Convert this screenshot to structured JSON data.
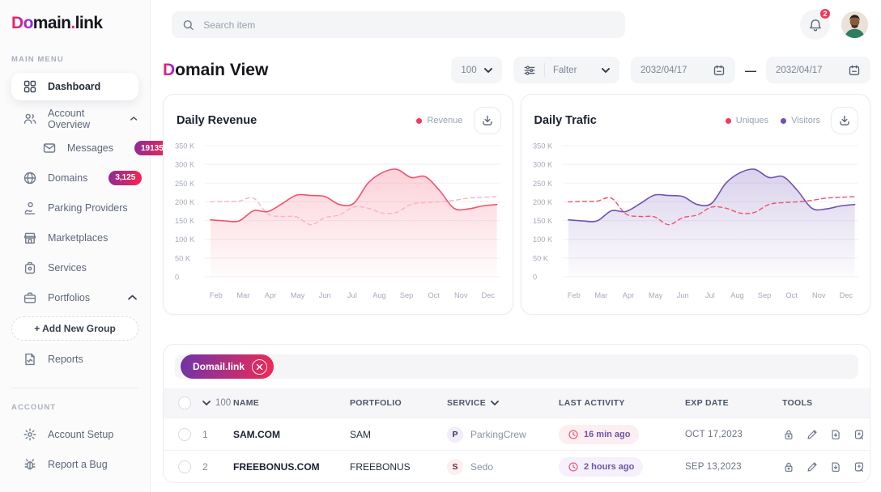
{
  "brand": {
    "logo_gradient": "Do",
    "logo_main": "main",
    "logo_dot": ".",
    "logo_tld": "link"
  },
  "sidebar": {
    "main_menu_label": "MAIN MENU",
    "account_label": "ACCOUNT",
    "dashboard": "Dashboard",
    "account_overview": "Account Overview",
    "messages": "Messages",
    "messages_badge": "19135",
    "domains": "Domains",
    "domains_badge": "3,125",
    "parking_providers": "Parking Providers",
    "marketplaces": "Marketplaces",
    "services": "Services",
    "portfolios": "Portfolios",
    "add_new_group": "+  Add New Group",
    "reports": "Reports",
    "account_setup": "Account Setup",
    "report_a_bug": "Report a Bug"
  },
  "topbar": {
    "search_placeholder": "Search item",
    "notification_count": "2"
  },
  "page": {
    "title_lead": "D",
    "title_rest": "omain View"
  },
  "controls": {
    "page_size": "100",
    "filter_label": "Falter",
    "date_from": "2032/04/17",
    "date_separator": "—",
    "date_to": "2032/04/17"
  },
  "chart_data": [
    {
      "type": "area",
      "title": "Daily Revenue",
      "legend": [
        {
          "label": "Revenue",
          "color": "#f4385e"
        }
      ],
      "categories": [
        "Feb",
        "Mar",
        "Apr",
        "May",
        "Jun",
        "Jul",
        "Aug",
        "Sep",
        "Oct",
        "Nov",
        "Dec"
      ],
      "ytick_labels": [
        "350 K",
        "300 K",
        "250 K",
        "200 K",
        "150 K",
        "100 K",
        "50 K",
        "0"
      ],
      "ylim": [
        0,
        350
      ],
      "unit": "K",
      "grid": true,
      "series": [
        {
          "name": "Revenue",
          "style": "solid",
          "color": "#f4506c",
          "fill": "#f4506c",
          "values": [
            152,
            149,
            149,
            176,
            174,
            195,
            218,
            217,
            214,
            193,
            196,
            250,
            278,
            287,
            265,
            267,
            230,
            183,
            181,
            189,
            193
          ]
        },
        {
          "name": "Revenue (unlabeled dashed)",
          "style": "dashed",
          "color": "#f8b4c2",
          "fill": null,
          "values": [
            200,
            201,
            202,
            210,
            168,
            161,
            160,
            139,
            158,
            165,
            186,
            183,
            170,
            172,
            193,
            198,
            200,
            204,
            210,
            212,
            214
          ]
        }
      ]
    },
    {
      "type": "area",
      "title": "Daily Trafic",
      "legend": [
        {
          "label": "Uniques",
          "color": "#f4385e"
        },
        {
          "label": "Visitors",
          "color": "#7050b4"
        }
      ],
      "categories": [
        "Feb",
        "Mar",
        "Apr",
        "May",
        "Jun",
        "Jul",
        "Aug",
        "Sep",
        "Oct",
        "Nov",
        "Dec"
      ],
      "ytick_labels": [
        "350 K",
        "300 K",
        "250 K",
        "200 K",
        "150 K",
        "100 K",
        "50 K",
        "0"
      ],
      "ylim": [
        0,
        350
      ],
      "unit": "K",
      "grid": true,
      "series": [
        {
          "name": "Visitors",
          "style": "solid",
          "color": "#7050b4",
          "fill": "#7050b4",
          "values": [
            152,
            149,
            149,
            176,
            174,
            195,
            218,
            217,
            214,
            193,
            196,
            250,
            278,
            287,
            265,
            267,
            230,
            183,
            181,
            189,
            193
          ]
        },
        {
          "name": "Uniques",
          "style": "dashed",
          "color": "#f4506c",
          "fill": null,
          "values": [
            200,
            201,
            202,
            210,
            168,
            161,
            160,
            139,
            158,
            165,
            186,
            183,
            170,
            172,
            193,
            198,
            200,
            204,
            210,
            212,
            214
          ]
        }
      ]
    }
  ],
  "table": {
    "filter_chip": "Domail.link",
    "header_count": "100",
    "columns": {
      "name": "NAME",
      "portfolio": "PORTFOLIO",
      "service": "SERVICE",
      "last_activity": "LAST ACTIVITY",
      "exp_date": "EXP DATE",
      "tools": "TOOLS"
    },
    "rows": [
      {
        "num": "1",
        "name": "SAM.COM",
        "portfolio": "SAM",
        "service_initial": "P",
        "service": "ParkingCrew",
        "activity": "16 min ago",
        "activity_theme": "rose",
        "service_theme": "violet",
        "exp": "OCT 17,2023"
      },
      {
        "num": "2",
        "name": "FREEBONUS.COM",
        "portfolio": "FREEBONUS",
        "service_initial": "S",
        "service": "Sedo",
        "activity": "2 hours ago",
        "activity_theme": "violet",
        "service_theme": "rose",
        "exp": "SEP 13,2023"
      }
    ]
  },
  "colors": {
    "accent_red": "#f4385e",
    "accent_purple": "#7050b4",
    "gradient_start": "#6d35a8",
    "gradient_end": "#f02a54"
  }
}
